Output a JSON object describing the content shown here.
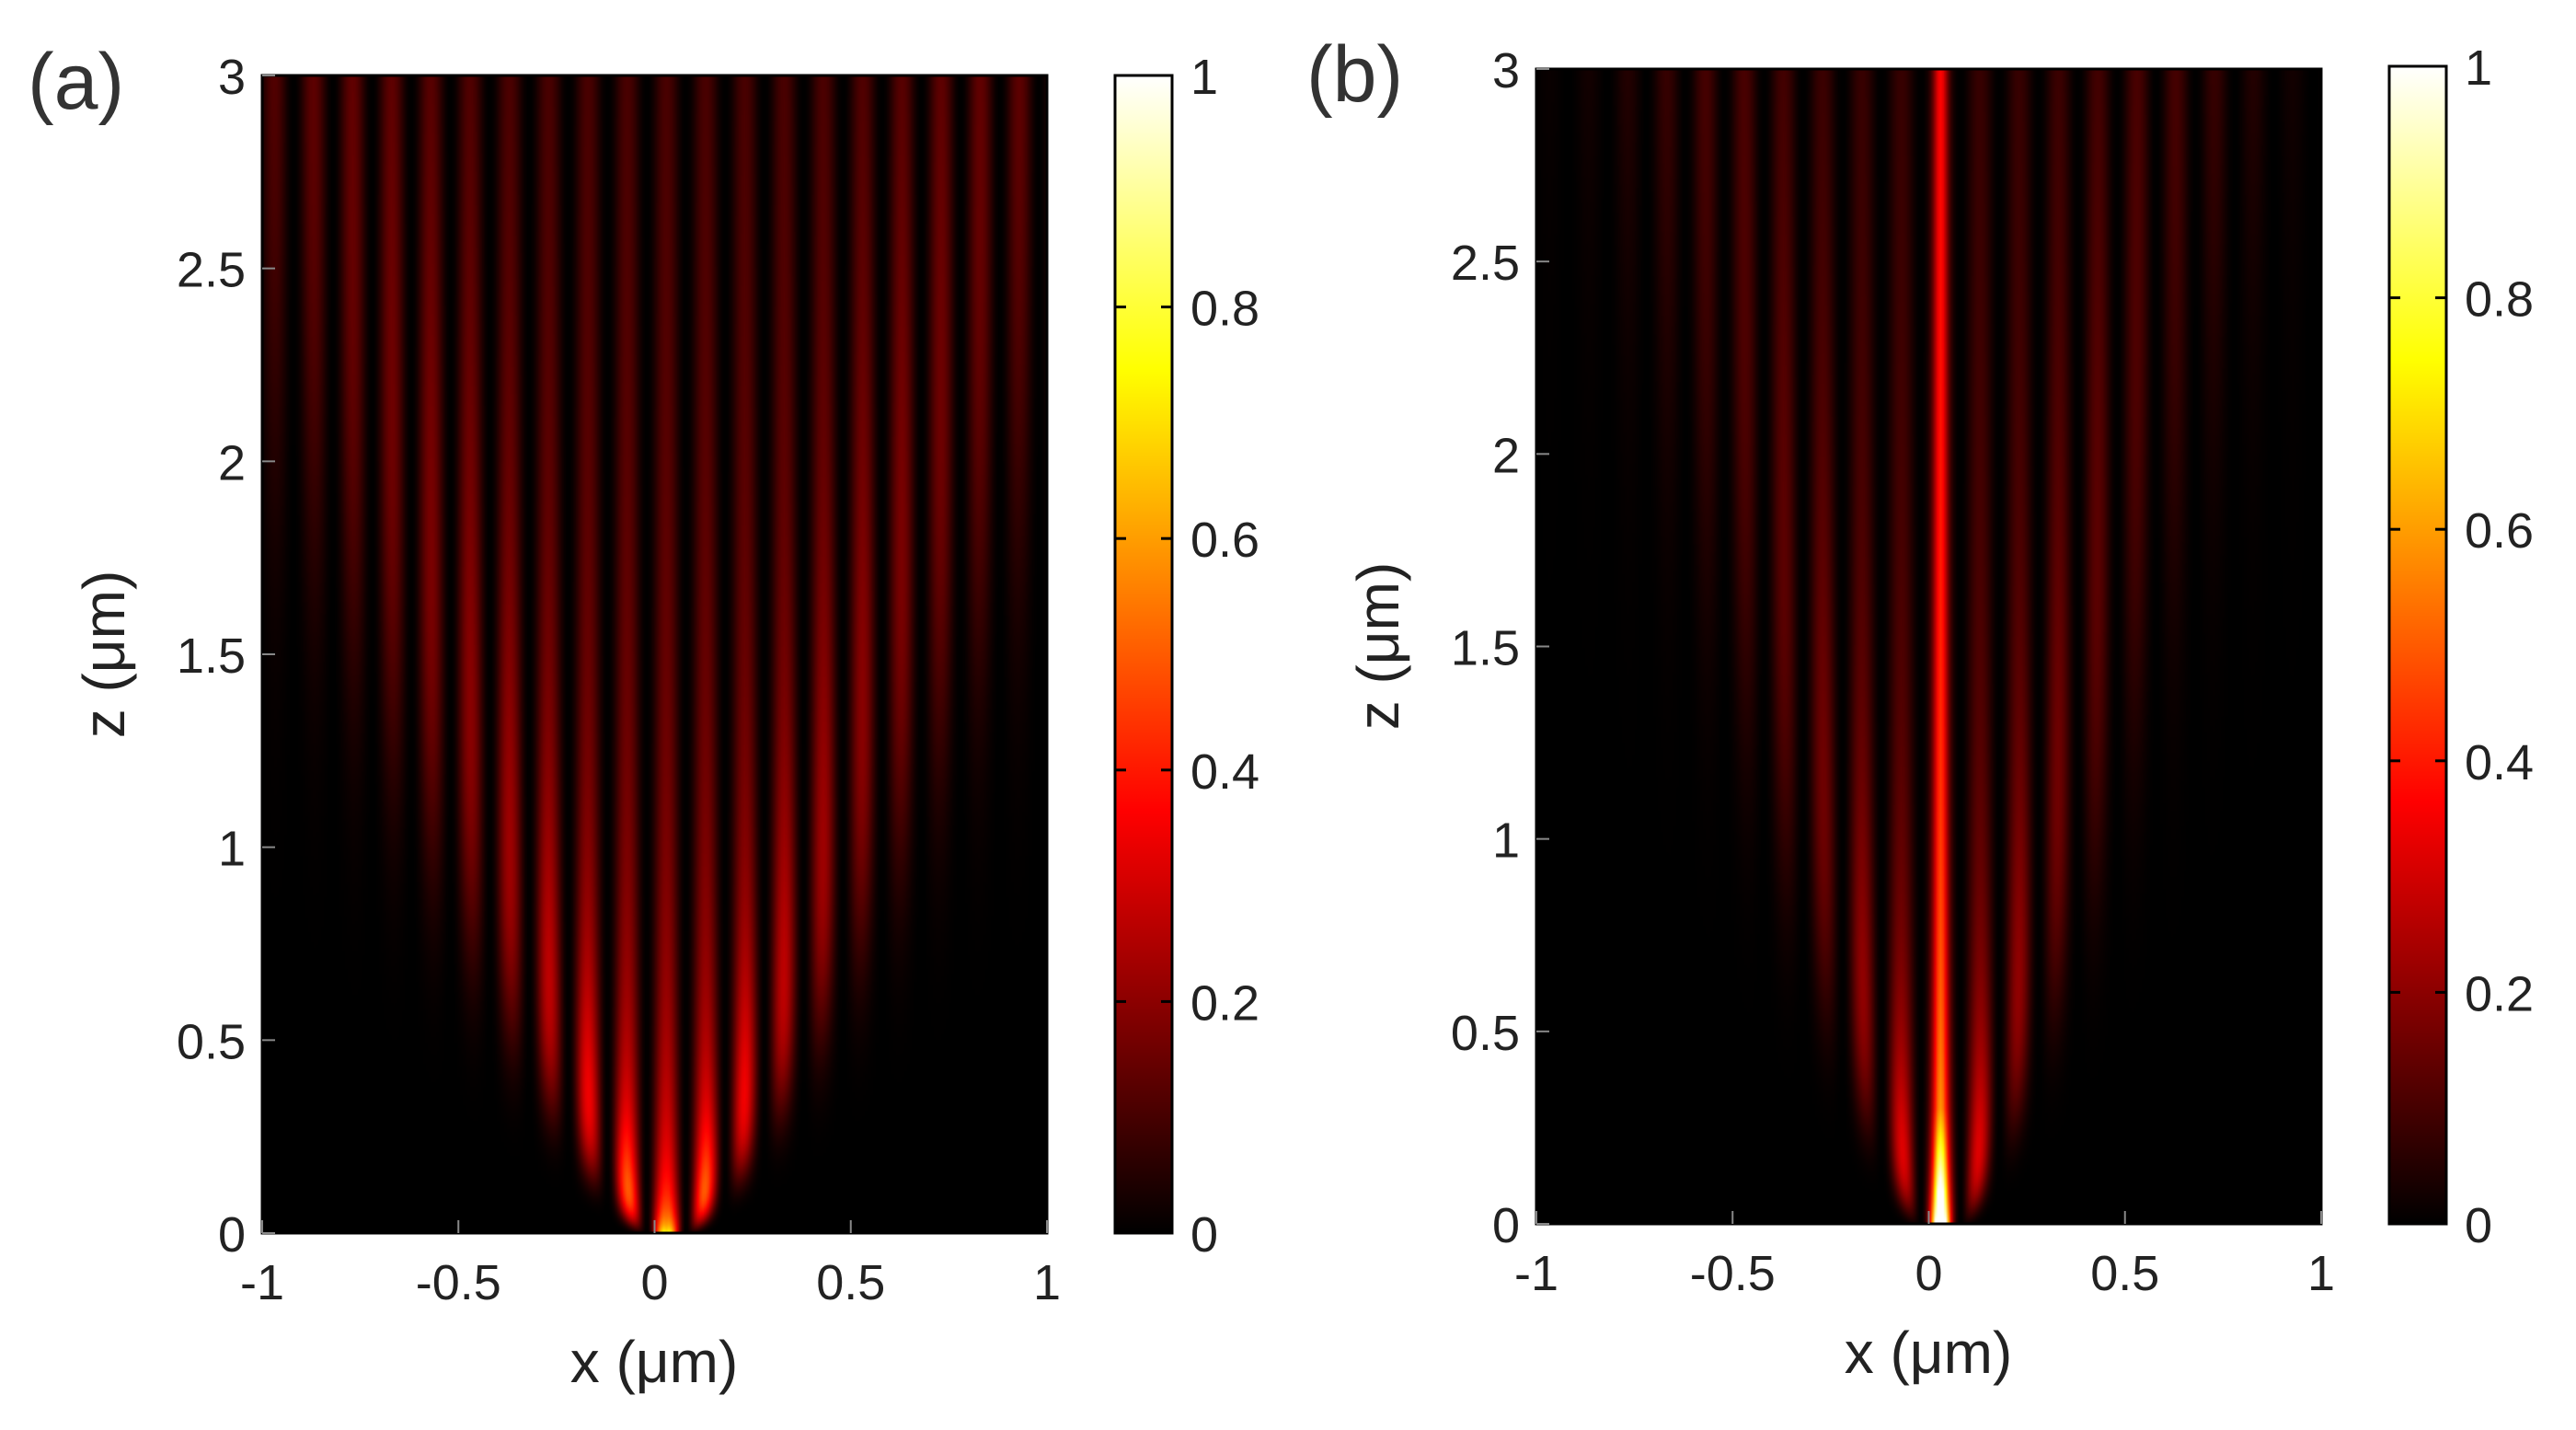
{
  "chart_data": [
    {
      "type": "heatmap",
      "panel_label": "(a)",
      "xlabel": "x (μm)",
      "ylabel": "z (μm)",
      "xlim": [
        -1,
        1
      ],
      "ylim": [
        0,
        3
      ],
      "xticks": [
        "-1",
        "-0.5",
        "0",
        "0.5",
        "1"
      ],
      "xtick_values": [
        -1,
        -0.5,
        0,
        0.5,
        1
      ],
      "yticks": [
        "0",
        "0.5",
        "1",
        "1.5",
        "2",
        "2.5",
        "3"
      ],
      "ytick_values": [
        0,
        0.5,
        1,
        1.5,
        2,
        2.5,
        3
      ],
      "colormap": "hot",
      "colorbar": {
        "range": [
          0,
          1
        ],
        "ticks": [
          "0",
          "0.2",
          "0.4",
          "0.6",
          "0.8",
          "1"
        ],
        "tick_values": [
          0,
          0.2,
          0.4,
          0.6,
          0.8,
          1
        ]
      },
      "field": {
        "peak": 1.0,
        "peak_location": [
          0.03,
          0.0
        ],
        "pattern": "V-shaped diverging interference fringes (discrete diffraction)",
        "cone_half_width_at_top": 1.0,
        "fringe_spacing": 0.1,
        "central_beam_strength": 0.0
      }
    },
    {
      "type": "heatmap",
      "panel_label": "(b)",
      "xlabel": "x (μm)",
      "ylabel": "z (μm)",
      "xlim": [
        -1,
        1
      ],
      "ylim": [
        0,
        3
      ],
      "xticks": [
        "-1",
        "-0.5",
        "0",
        "0.5",
        "1"
      ],
      "xtick_values": [
        -1,
        -0.5,
        0,
        0.5,
        1
      ],
      "yticks": [
        "0",
        "0.5",
        "1",
        "1.5",
        "2",
        "2.5",
        "3"
      ],
      "ytick_values": [
        0,
        0.5,
        1,
        1.5,
        2,
        2.5,
        3
      ],
      "colormap": "hot",
      "colorbar": {
        "range": [
          0,
          1
        ],
        "ticks": [
          "0",
          "0.2",
          "0.4",
          "0.6",
          "0.8",
          "1"
        ],
        "tick_values": [
          0,
          0.2,
          0.4,
          0.6,
          0.8,
          1
        ]
      },
      "field": {
        "peak": 1.0,
        "peak_location": [
          0.03,
          0.0
        ],
        "pattern": "narrow central beam with weak side fringes",
        "cone_half_width_at_top": 0.65,
        "fringe_spacing": 0.1,
        "central_beam_strength": 0.42
      }
    }
  ]
}
